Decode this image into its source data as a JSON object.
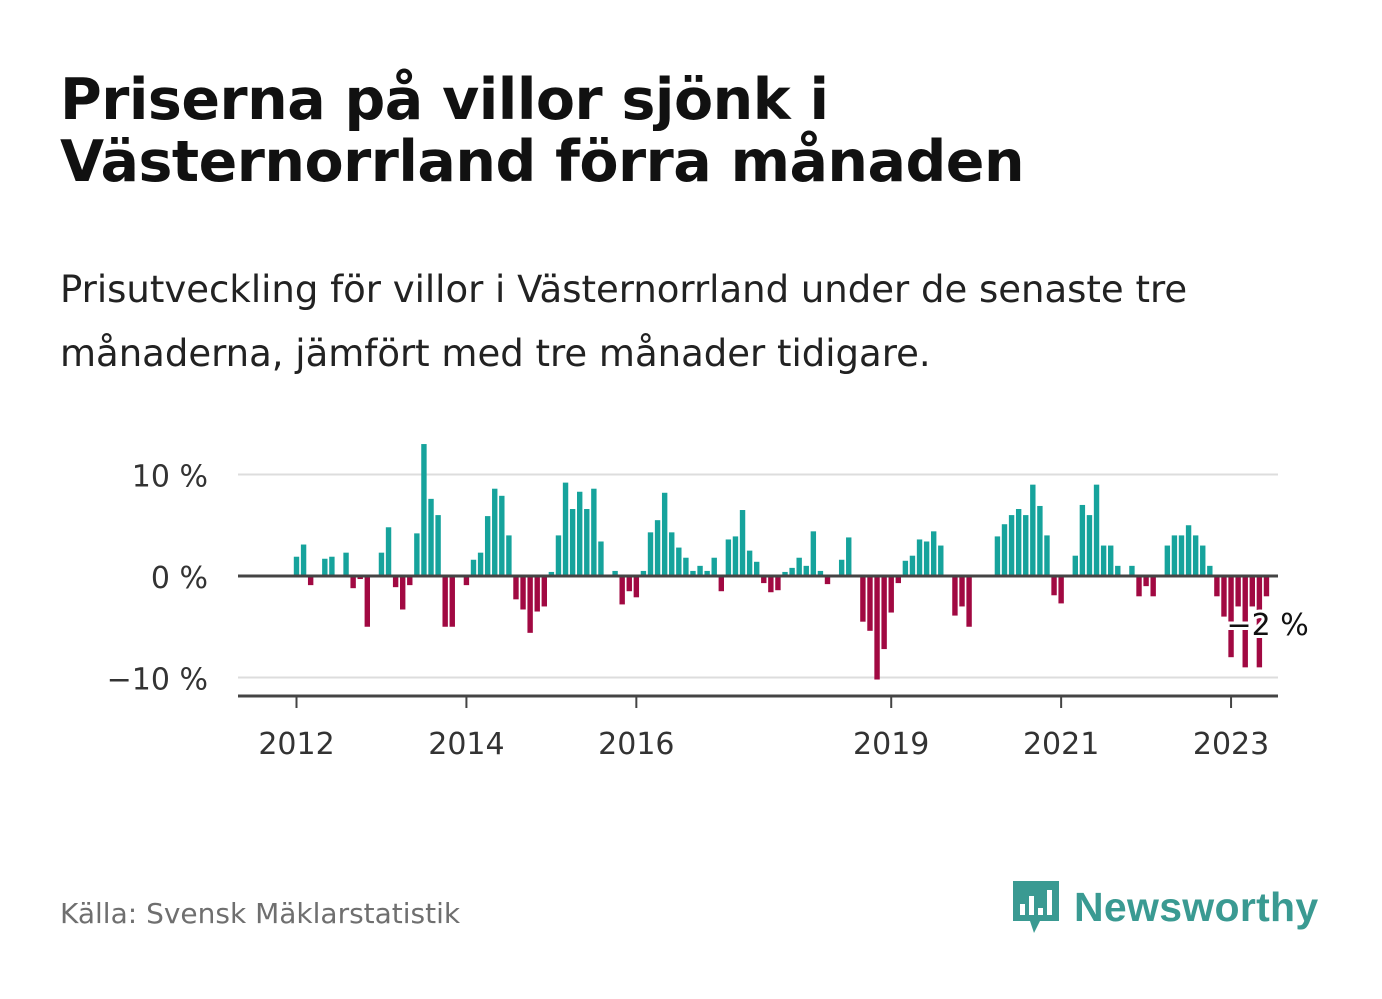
{
  "title": "Priserna på villor sjönk i Västernorrland förra månaden",
  "subtitle": "Prisutveckling för villor i Västernorrland under de senaste tre månaderna, jämfört med tre månader tidigare.",
  "source": "Källa: Svensk Mäklarstatistik",
  "brand": "Newsworthy",
  "colors": {
    "positive": "#16a39c",
    "negative": "#a10942",
    "brand": "#3a9a92",
    "axis": "#444444",
    "grid": "#dddddd"
  },
  "chart_data": {
    "type": "bar",
    "x_start": "2011-07",
    "x_end": "2023-06",
    "ylim": [
      -12,
      13
    ],
    "grid": true,
    "y_ticks": [
      {
        "value": 10,
        "label": "10 %"
      },
      {
        "value": 0,
        "label": "0 %"
      },
      {
        "value": -10,
        "label": "−10 %"
      }
    ],
    "x_ticks": [
      {
        "date": "2012-01",
        "label": "2012"
      },
      {
        "date": "2014-01",
        "label": "2014"
      },
      {
        "date": "2016-01",
        "label": "2016"
      },
      {
        "date": "2019-01",
        "label": "2019"
      },
      {
        "date": "2021-01",
        "label": "2021"
      },
      {
        "date": "2023-01",
        "label": "2023"
      }
    ],
    "series": [
      {
        "start": "2012-01",
        "values": [
          1.9,
          3.1,
          -0.9,
          0,
          1.7,
          1.9,
          0,
          2.3,
          -1.2,
          -0.3,
          -5.0,
          0,
          2.3,
          4.8,
          -1.1,
          -3.3,
          -0.9,
          4.2,
          13.0,
          7.6,
          6.0,
          -5.0,
          -5.0,
          0,
          -0.9,
          1.6,
          2.3,
          5.9,
          8.6,
          7.9,
          4.0,
          -2.3,
          -3.3,
          -5.6,
          -3.5,
          -3.0,
          0.4,
          4.0,
          9.2,
          6.6,
          8.3,
          6.6,
          8.6,
          3.4,
          0,
          0.5,
          -2.8,
          -1.5,
          -2.1,
          0.5,
          4.3,
          5.5,
          8.2,
          4.3,
          2.8,
          1.8,
          0.5,
          1.0,
          0.5,
          1.8,
          -1.5,
          3.6,
          3.9,
          6.5,
          2.5,
          1.4,
          -0.7,
          -1.6,
          -1.4,
          0.4,
          0.8,
          1.8,
          1.0,
          4.4,
          0.5,
          -0.8,
          0,
          1.6,
          3.8,
          0,
          -4.5,
          -5.4,
          -10.2,
          -7.2,
          -3.6,
          -0.7,
          1.5,
          2.0,
          3.6,
          3.4,
          4.4,
          3.0,
          0,
          -3.9,
          -3.0,
          -5.0,
          0,
          0,
          0,
          3.9,
          5.1,
          6.0,
          6.6,
          6.0,
          9.0,
          6.9,
          4.0,
          -1.9,
          -2.7,
          0,
          2.0,
          7.0,
          6.0,
          9.0,
          3.0,
          3.0,
          1.0,
          0,
          1.0,
          -2.0,
          -1.0,
          -2.0,
          0,
          3.0,
          4.0,
          4.0,
          5.0,
          4.0,
          3.0,
          1.0,
          -2.0,
          -4.0,
          -8.0,
          -3.0,
          -9.0,
          -3.0,
          -9.0,
          -2.0
        ]
      }
    ],
    "annotation": {
      "text": "−2 %",
      "date": "2023-06"
    }
  }
}
